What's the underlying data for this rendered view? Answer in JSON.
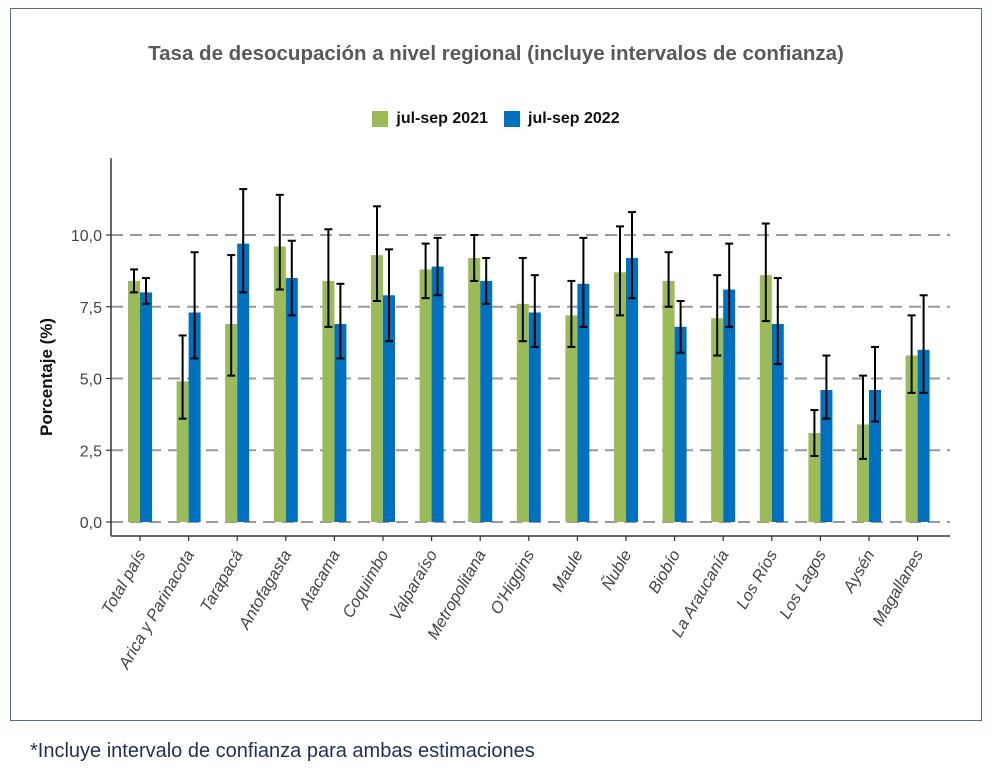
{
  "chart_data": {
    "type": "bar",
    "title": "Tasa de desocupación a nivel regional (incluye intervalos de confianza)",
    "ylabel": "Porcentaje (%)",
    "xlabel": "",
    "ylim": [
      0,
      12.5
    ],
    "yticks": [
      0.0,
      2.5,
      5.0,
      7.5,
      10.0
    ],
    "ytick_labels": [
      "0,0",
      "2,5",
      "5,0",
      "7,5",
      "10,0"
    ],
    "grid": "horizontal dashed",
    "legend_position": "top",
    "categories": [
      "Total país",
      "Arica y Parinacota",
      "Tarapacá",
      "Antofagasta",
      "Atacama",
      "Coquimbo",
      "Valparaíso",
      "Metropolitana",
      "O'Higgins",
      "Maule",
      "Ñuble",
      "Biobío",
      "La Araucanía",
      "Los Ríos",
      "Los Lagos",
      "Aysén",
      "Magallanes"
    ],
    "series": [
      {
        "name": "jul-sep 2021",
        "color": "#9bbb59",
        "values": [
          8.4,
          4.9,
          6.9,
          9.6,
          8.4,
          9.3,
          8.8,
          9.2,
          7.6,
          7.2,
          8.7,
          8.4,
          7.1,
          8.6,
          3.1,
          3.4,
          5.8
        ],
        "ci_low": [
          8.0,
          3.6,
          5.1,
          8.1,
          6.8,
          7.7,
          7.8,
          8.4,
          6.3,
          6.1,
          7.2,
          7.5,
          5.8,
          7.0,
          2.3,
          2.2,
          4.5
        ],
        "ci_high": [
          8.8,
          6.5,
          9.3,
          11.4,
          10.2,
          11.0,
          9.7,
          10.0,
          9.2,
          8.4,
          10.3,
          9.4,
          8.6,
          10.4,
          3.9,
          5.1,
          7.2
        ]
      },
      {
        "name": "jul-sep 2022",
        "color": "#0070c0",
        "values": [
          8.0,
          7.3,
          9.7,
          8.5,
          6.9,
          7.9,
          8.9,
          8.4,
          7.3,
          8.3,
          9.2,
          6.8,
          8.1,
          6.9,
          4.6,
          4.6,
          6.0
        ],
        "ci_low": [
          7.6,
          5.7,
          8.0,
          7.2,
          5.7,
          6.3,
          7.9,
          7.6,
          6.1,
          6.8,
          7.8,
          5.9,
          6.8,
          5.5,
          3.6,
          3.5,
          4.5
        ],
        "ci_high": [
          8.5,
          9.4,
          11.6,
          9.8,
          8.3,
          9.5,
          9.9,
          9.2,
          8.6,
          9.9,
          10.8,
          7.7,
          9.7,
          8.5,
          5.8,
          6.1,
          7.9
        ]
      }
    ]
  },
  "footnote": "*Incluye intervalo de confianza para ambas estimaciones"
}
